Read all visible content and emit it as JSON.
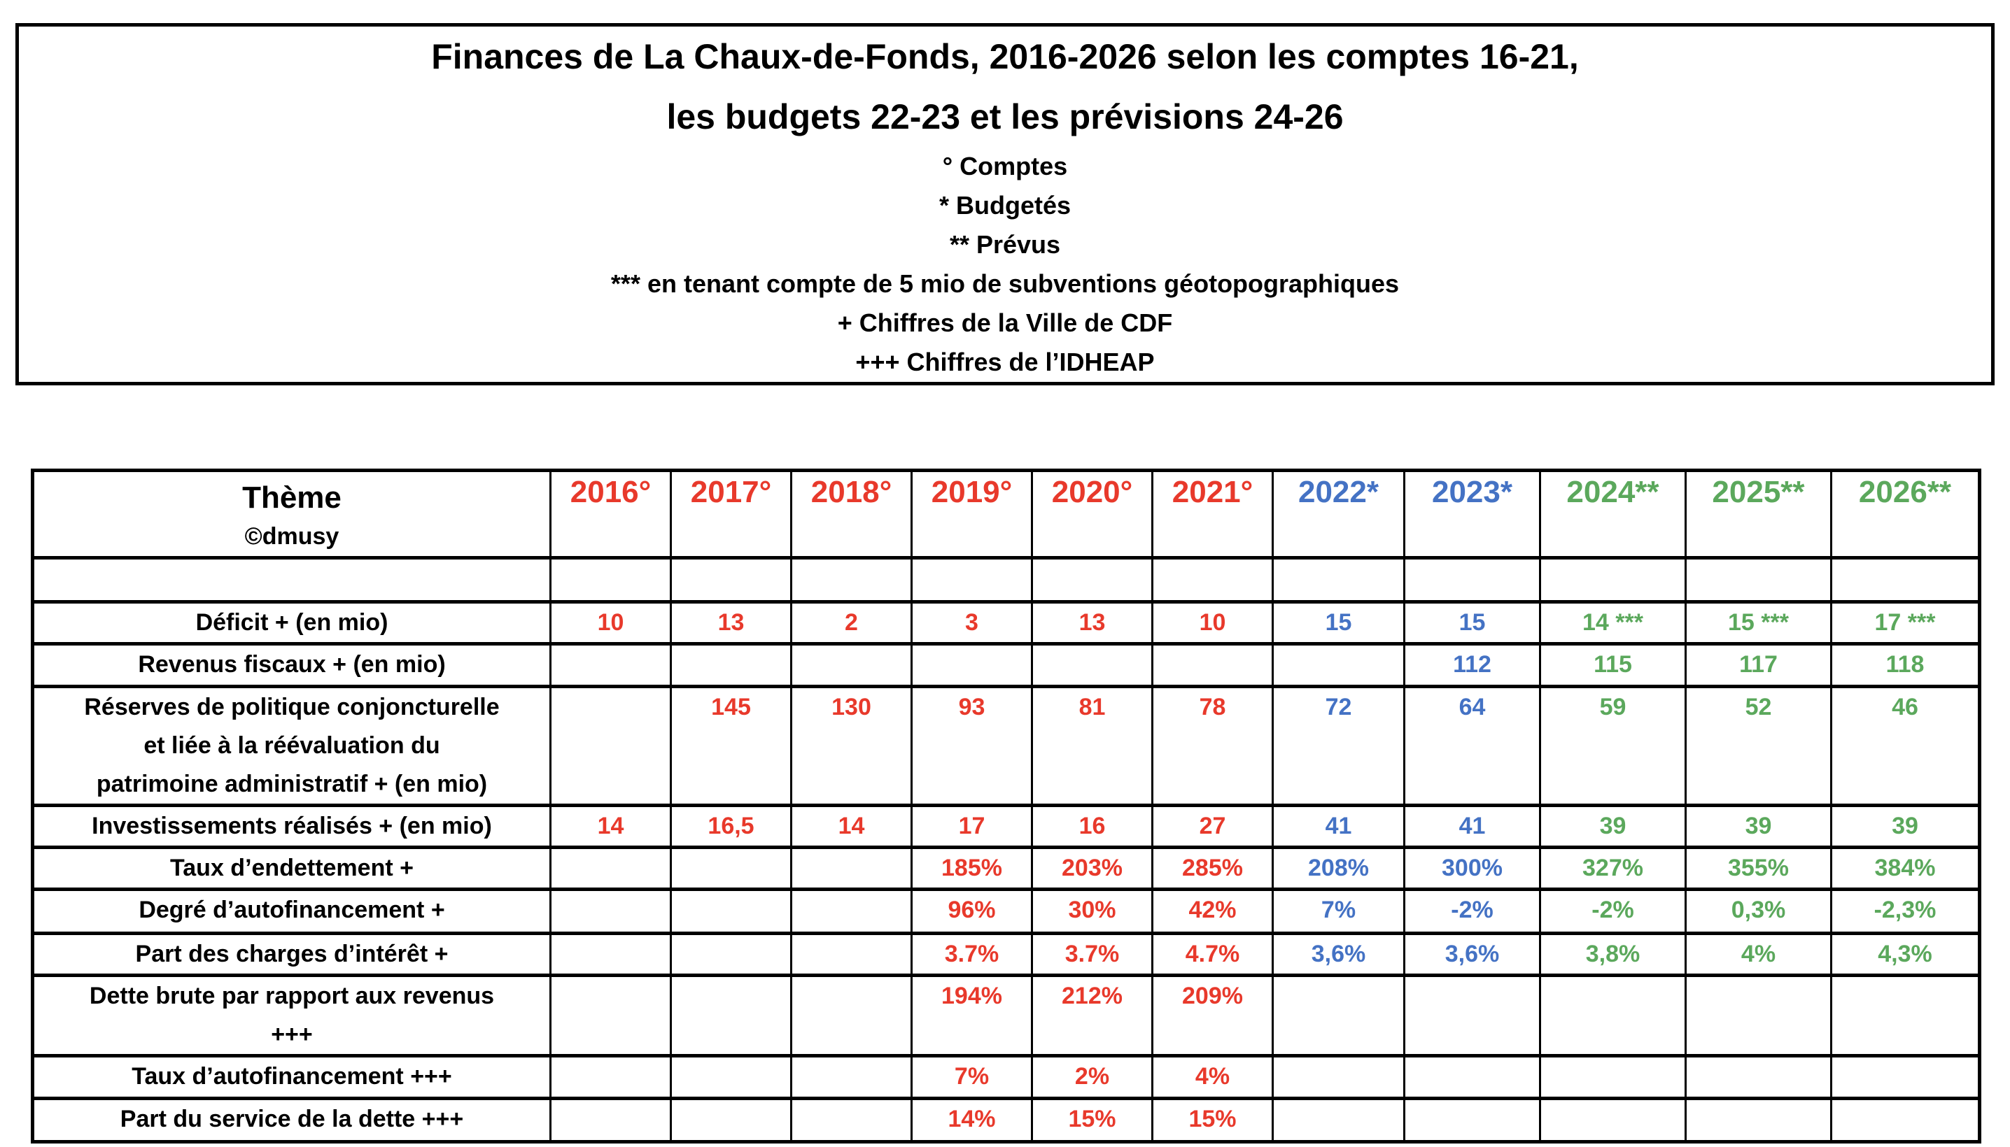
{
  "header": {
    "title_line1": "Finances de La Chaux-de-Fonds, 2016-2026 selon les comptes 16-21,",
    "title_line2": "les budgets 22-23 et les prévisions 24-26",
    "legend": [
      "° Comptes",
      "* Budgetés",
      "** Prévus",
      "*** en tenant compte de 5 mio de subventions géotopographiques",
      "+ Chiffres de la Ville de CDF",
      "+++ Chiffres de l’IDHEAP"
    ]
  },
  "colors": {
    "accounts_red": "#E8392B",
    "budget_blue": "#4472C4",
    "forecast_green": "#5BA85C",
    "text_black": "#000000"
  },
  "table": {
    "theme_header": "Thème",
    "theme_subheader": "©dmusy",
    "columns": [
      {
        "label": "2016°",
        "color": "red"
      },
      {
        "label": "2017°",
        "color": "red"
      },
      {
        "label": "2018°",
        "color": "red"
      },
      {
        "label": "2019°",
        "color": "red"
      },
      {
        "label": "2020°",
        "color": "red"
      },
      {
        "label": "2021°",
        "color": "red"
      },
      {
        "label": "2022*",
        "color": "blue"
      },
      {
        "label": "2023*",
        "color": "blue"
      },
      {
        "label": "2024**",
        "color": "green"
      },
      {
        "label": "2025**",
        "color": "green"
      },
      {
        "label": "2026**",
        "color": "green"
      }
    ],
    "rows": [
      {
        "label": "",
        "values": [
          "",
          "",
          "",
          "",
          "",
          "",
          "",
          "",
          "",
          "",
          ""
        ]
      },
      {
        "label": "Déficit + (en mio)",
        "values": [
          "10",
          "13",
          "2",
          "3",
          "13",
          "10",
          "15",
          "15",
          "14 ***",
          "15 ***",
          "17 ***"
        ]
      },
      {
        "label": "Revenus fiscaux + (en mio)",
        "values": [
          "",
          "",
          "",
          "",
          "",
          "",
          "",
          "112",
          "115",
          "117",
          "118"
        ]
      },
      {
        "label": "Réserves de politique conjoncturelle\net liée à la réévaluation du\npatrimoine administratif + (en mio)",
        "values": [
          "",
          "145",
          "130",
          "93",
          "81",
          "78",
          "72",
          "64",
          "59",
          "52",
          "46"
        ]
      },
      {
        "label": "Investissements réalisés + (en mio)",
        "values": [
          "14",
          "16,5",
          "14",
          "17",
          "16",
          "27",
          "41",
          "41",
          "39",
          "39",
          "39"
        ]
      },
      {
        "label": "Taux d’endettement +",
        "values": [
          "",
          "",
          "",
          "185%",
          "203%",
          "285%",
          "208%",
          "300%",
          "327%",
          "355%",
          "384%"
        ]
      },
      {
        "label": "Degré d’autofinancement +",
        "values": [
          "",
          "",
          "",
          "96%",
          "30%",
          "42%",
          "7%",
          "-2%",
          "-2%",
          "0,3%",
          "-2,3%"
        ]
      },
      {
        "label": "Part des charges d’intérêt +",
        "values": [
          "",
          "",
          "",
          "3.7%",
          "3.7%",
          "4.7%",
          "3,6%",
          "3,6%",
          "3,8%",
          "4%",
          "4,3%"
        ]
      },
      {
        "label": "Dette brute par rapport aux revenus\n+++",
        "values": [
          "",
          "",
          "",
          "194%",
          "212%",
          "209%",
          "",
          "",
          "",
          "",
          ""
        ]
      },
      {
        "label": "Taux d’autofinancement +++",
        "values": [
          "",
          "",
          "",
          "7%",
          "2%",
          "4%",
          "",
          "",
          "",
          "",
          ""
        ]
      },
      {
        "label": "Part du service de la dette +++",
        "values": [
          "",
          "",
          "",
          "14%",
          "15%",
          "15%",
          "",
          "",
          "",
          "",
          ""
        ]
      }
    ]
  }
}
